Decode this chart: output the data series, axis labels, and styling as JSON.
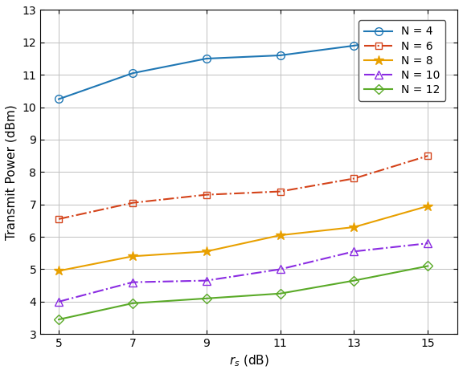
{
  "x": [
    5,
    7,
    9,
    11,
    13,
    15
  ],
  "series": [
    {
      "label": "N = 4",
      "color": "#1f77b4",
      "linestyle": "-",
      "marker": "o",
      "markersize": 7,
      "markerfacecolor": "none",
      "linewidth": 1.5,
      "values": [
        10.25,
        11.05,
        11.5,
        11.6,
        11.9,
        12.25
      ]
    },
    {
      "label": "N = 6",
      "color": "#d4431a",
      "linestyle": "-.",
      "marker": "s",
      "markersize": 6,
      "markerfacecolor": "none",
      "linewidth": 1.5,
      "values": [
        6.55,
        7.05,
        7.3,
        7.4,
        7.8,
        8.5
      ]
    },
    {
      "label": "N = 8",
      "color": "#e8a000",
      "linestyle": "-",
      "marker": "*",
      "markersize": 9,
      "markerfacecolor": "#e8a000",
      "linewidth": 1.5,
      "values": [
        4.95,
        5.4,
        5.55,
        6.05,
        6.3,
        6.95
      ]
    },
    {
      "label": "N = 10",
      "color": "#8a2be2",
      "linestyle": "-.",
      "marker": "^",
      "markersize": 7,
      "markerfacecolor": "none",
      "linewidth": 1.5,
      "values": [
        4.0,
        4.6,
        4.65,
        5.0,
        5.55,
        5.8
      ]
    },
    {
      "label": "N = 12",
      "color": "#5aaa28",
      "linestyle": "-",
      "marker": "D",
      "markersize": 6,
      "markerfacecolor": "none",
      "linewidth": 1.5,
      "values": [
        3.45,
        3.95,
        4.1,
        4.25,
        4.65,
        5.1
      ]
    }
  ],
  "xlabel": "$r_s$ (dB)",
  "ylabel": "Transmit Power (dBm)",
  "xlim": [
    4.5,
    15.8
  ],
  "ylim": [
    3,
    13
  ],
  "xticks": [
    5,
    7,
    9,
    11,
    13,
    15
  ],
  "yticks": [
    3,
    4,
    5,
    6,
    7,
    8,
    9,
    10,
    11,
    12,
    13
  ],
  "grid": true,
  "figsize": [
    5.76,
    4.66
  ],
  "dpi": 100
}
